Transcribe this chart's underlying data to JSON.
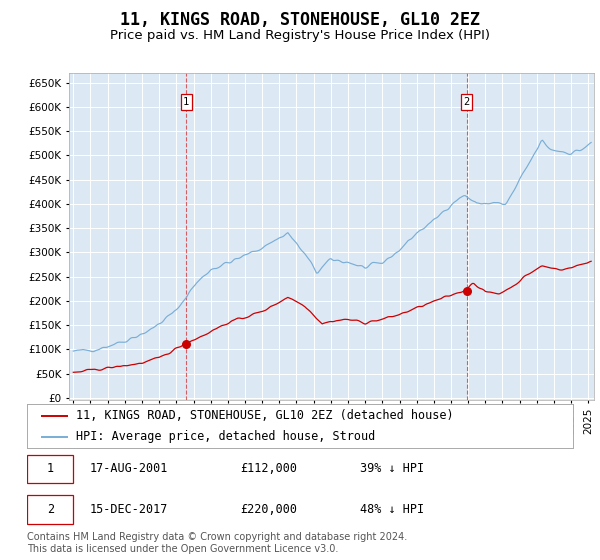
{
  "title": "11, KINGS ROAD, STONEHOUSE, GL10 2EZ",
  "subtitle": "Price paid vs. HM Land Registry's House Price Index (HPI)",
  "sale1_date": "2001-08-17",
  "sale1_price": 112000,
  "sale1_label": "1",
  "sale2_date": "2017-12-15",
  "sale2_price": 220000,
  "sale2_label": "2",
  "legend_property": "11, KINGS ROAD, STONEHOUSE, GL10 2EZ (detached house)",
  "legend_hpi": "HPI: Average price, detached house, Stroud",
  "footnote": "Contains HM Land Registry data © Crown copyright and database right 2024.\nThis data is licensed under the Open Government Licence v3.0.",
  "hpi_color": "#7aaed6",
  "property_color": "#cc0000",
  "dot_color": "#cc0000",
  "vline_color": "#cc0000",
  "background_color": "#dce9f5",
  "grid_color": "#ffffff",
  "y_ticks": [
    0,
    50000,
    100000,
    150000,
    200000,
    250000,
    300000,
    350000,
    400000,
    450000,
    500000,
    550000,
    600000,
    650000
  ],
  "ylim": [
    -5000,
    670000
  ],
  "title_fontsize": 12,
  "subtitle_fontsize": 9.5,
  "axis_fontsize": 8,
  "legend_fontsize": 8.5,
  "annot_fontsize": 8.5,
  "footnote_fontsize": 7
}
